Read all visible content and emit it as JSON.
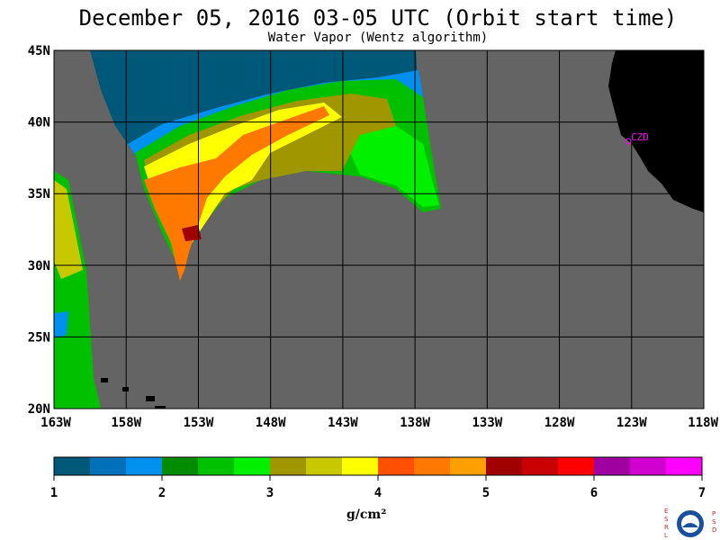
{
  "title": "December 05, 2016  03-05 UTC  (Orbit start time)",
  "subtitle": "Water Vapor (Wentz algorithm)",
  "lat_labels": [
    "45N",
    "40N",
    "35N",
    "30N",
    "25N",
    "20N"
  ],
  "lon_labels": [
    "163W",
    "158W",
    "153W",
    "148W",
    "143W",
    "138W",
    "133W",
    "128W",
    "123W",
    "118W"
  ],
  "station_label": "CZD",
  "colorbar": {
    "ticks": [
      "1",
      "2",
      "3",
      "4",
      "5",
      "6",
      "7"
    ],
    "units": "g/cm²",
    "colors": [
      "#005878",
      "#0070b8",
      "#0090f0",
      "#008c00",
      "#00c000",
      "#00f000",
      "#a09600",
      "#c8c800",
      "#ffff00",
      "#ff5000",
      "#ff7800",
      "#ffa000",
      "#a00000",
      "#c80000",
      "#ff0000",
      "#a000a0",
      "#d000d0",
      "#ff00ff"
    ]
  },
  "colors": {
    "background_grey": "#646464",
    "land": "#000000",
    "grid": "#000000",
    "station": "#ff00ff"
  },
  "logo": {
    "left_letters": "ESRL",
    "right_letters": "PSD",
    "name": "NOAA"
  }
}
